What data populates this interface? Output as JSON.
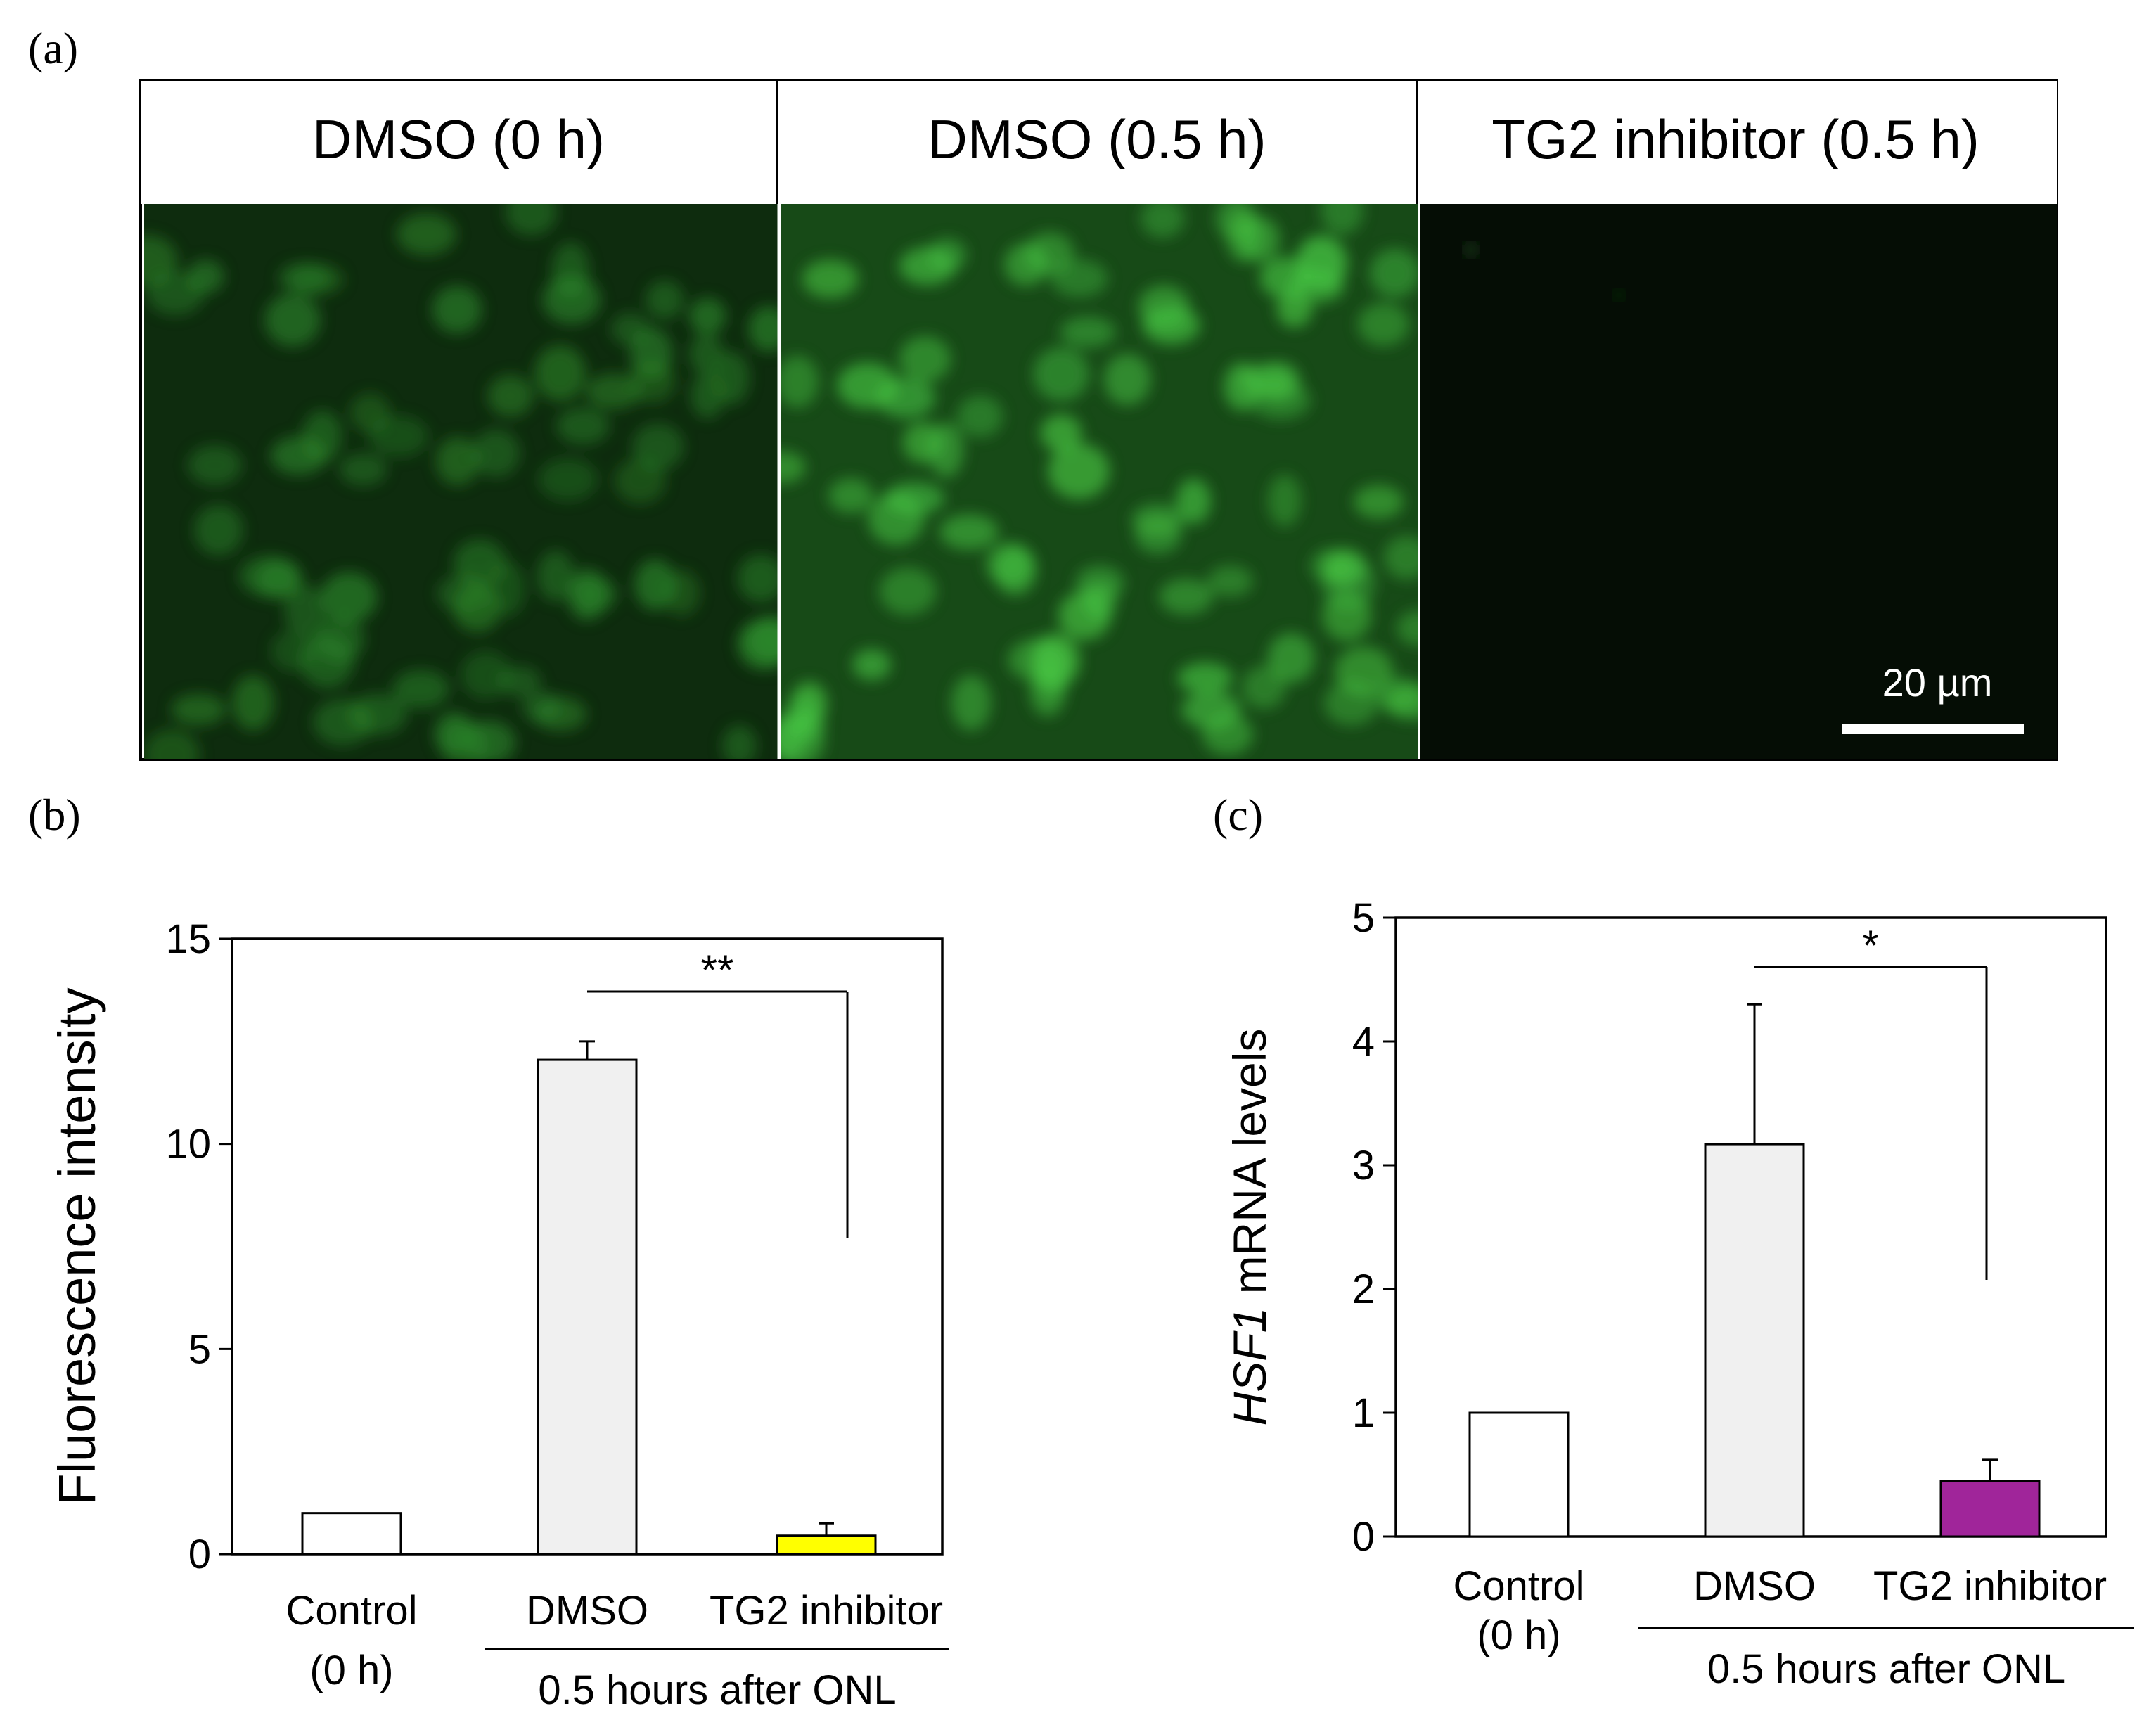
{
  "panels": {
    "a": "(a)",
    "b": "(b)",
    "c": "(c)"
  },
  "micrographs": {
    "headers": [
      "DMSO (0 h)",
      "DMSO (0.5 h)",
      "TG2 inhibitor (0.5 h)"
    ],
    "scale_bar_label": "20 µm",
    "cell_color": "#3fbe3a",
    "background_color": "#0c2a0c"
  },
  "chart_data": [
    {
      "type": "bar",
      "panel": "(b)",
      "categories": [
        "Control\n(0 h)",
        "DMSO",
        "TG2 inhibitor"
      ],
      "values": [
        1.0,
        12.05,
        0.45
      ],
      "errors": [
        0.0,
        0.45,
        0.3
      ],
      "colors": [
        "#ffffff",
        "#f0f0f0",
        "#ffff00"
      ],
      "ylabel": "Fluorescence intensity",
      "ylim": [
        0,
        15
      ],
      "yticks": [
        0,
        5,
        10,
        15
      ],
      "group_label": "0.5 hours after ONL",
      "group_categories": [
        "DMSO",
        "TG2 inhibitor"
      ],
      "significance": {
        "from": "DMSO",
        "to": "TG2 inhibitor",
        "label": "**"
      }
    },
    {
      "type": "bar",
      "panel": "(c)",
      "categories": [
        "Control\n(0 h)",
        "DMSO",
        "TG2 inhibitor"
      ],
      "values": [
        1.0,
        3.17,
        0.45
      ],
      "errors": [
        0.0,
        1.13,
        0.17
      ],
      "colors": [
        "#ffffff",
        "#f0f0f0",
        "#a0259a"
      ],
      "ylabel_italic": "HSF1",
      "ylabel_rest": " mRNA levels",
      "ylim": [
        0,
        5
      ],
      "yticks": [
        0,
        1,
        2,
        3,
        4,
        5
      ],
      "group_label": "0.5 hours after ONL",
      "group_categories": [
        "DMSO",
        "TG2 inhibitor"
      ],
      "significance": {
        "from": "DMSO",
        "to": "TG2 inhibitor",
        "label": "*"
      }
    }
  ]
}
